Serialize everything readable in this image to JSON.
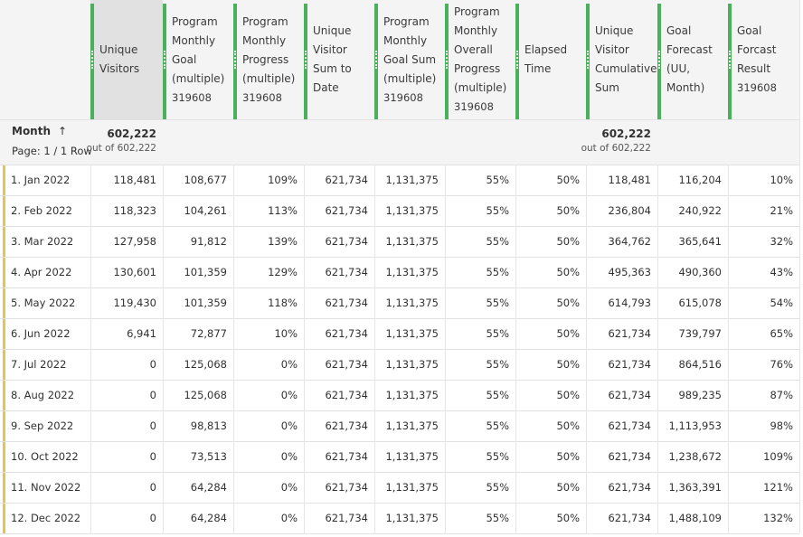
{
  "header": {
    "month_column": "Month",
    "page_info": "Page: 1 / 1 Row",
    "columns": [
      {
        "title": "Unique Visitors",
        "sub": null
      },
      {
        "title": "Program Monthly Goal (multiple)",
        "sub": "319608"
      },
      {
        "title": "Program Monthly Progress (multiple)",
        "sub": "319608"
      },
      {
        "title": "Unique Visitor Sum to Date",
        "sub": null
      },
      {
        "title": "Program Monthly Goal Sum (multiple)",
        "sub": "319608"
      },
      {
        "title": "Program Monthly Overall Progress (multiple)",
        "sub": "319608"
      },
      {
        "title": "Elapsed Time",
        "sub": null
      },
      {
        "title": "Unique Visitor Cumulative Sum",
        "sub": null
      },
      {
        "title": "Goal Forecast (UU, Month)",
        "sub": null
      },
      {
        "title": "Goal Forcast Result",
        "sub": "319608"
      }
    ]
  },
  "summary": [
    {
      "total": "602,222",
      "of": "out of 602,222"
    },
    null,
    null,
    null,
    null,
    null,
    null,
    {
      "total": "602,222",
      "of": "out of 602,222"
    },
    null,
    null
  ],
  "table": {
    "rows": [
      [
        "1. Jan 2022",
        "118,481",
        "108,677",
        "109%",
        "621,734",
        "1,131,375",
        "55%",
        "50%",
        "118,481",
        "116,204",
        "10%"
      ],
      [
        "2. Feb 2022",
        "118,323",
        "104,261",
        "113%",
        "621,734",
        "1,131,375",
        "55%",
        "50%",
        "236,804",
        "240,922",
        "21%"
      ],
      [
        "3. Mar 2022",
        "127,958",
        "91,812",
        "139%",
        "621,734",
        "1,131,375",
        "55%",
        "50%",
        "364,762",
        "365,641",
        "32%"
      ],
      [
        "4. Apr 2022",
        "130,601",
        "101,359",
        "129%",
        "621,734",
        "1,131,375",
        "55%",
        "50%",
        "495,363",
        "490,360",
        "43%"
      ],
      [
        "5. May 2022",
        "119,430",
        "101,359",
        "118%",
        "621,734",
        "1,131,375",
        "55%",
        "50%",
        "614,793",
        "615,078",
        "54%"
      ],
      [
        "6. Jun 2022",
        "6,941",
        "72,877",
        "10%",
        "621,734",
        "1,131,375",
        "55%",
        "50%",
        "621,734",
        "739,797",
        "65%"
      ],
      [
        "7. Jul 2022",
        "0",
        "125,068",
        "0%",
        "621,734",
        "1,131,375",
        "55%",
        "50%",
        "621,734",
        "864,516",
        "76%"
      ],
      [
        "8. Aug 2022",
        "0",
        "125,068",
        "0%",
        "621,734",
        "1,131,375",
        "55%",
        "50%",
        "621,734",
        "989,235",
        "87%"
      ],
      [
        "9. Sep 2022",
        "0",
        "98,813",
        "0%",
        "621,734",
        "1,131,375",
        "55%",
        "50%",
        "621,734",
        "1,113,953",
        "98%"
      ],
      [
        "10. Oct 2022",
        "0",
        "73,513",
        "0%",
        "621,734",
        "1,131,375",
        "55%",
        "50%",
        "621,734",
        "1,238,672",
        "109%"
      ],
      [
        "11. Nov 2022",
        "0",
        "64,284",
        "0%",
        "621,734",
        "1,131,375",
        "55%",
        "50%",
        "621,734",
        "1,363,391",
        "121%"
      ],
      [
        "12. Dec 2022",
        "0",
        "64,284",
        "0%",
        "621,734",
        "1,131,375",
        "55%",
        "50%",
        "621,734",
        "1,488,109",
        "132%"
      ]
    ]
  }
}
